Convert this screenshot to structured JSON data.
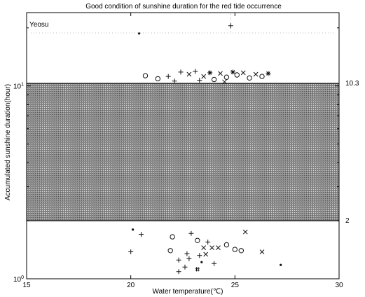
{
  "chart_data": {
    "type": "scatter",
    "title": "Good condition of sunshine duration for the red tide occurrence",
    "xlabel": "Water temperature(℃)",
    "ylabel": "Accumulated sunshine duration(hour)",
    "xlim": [
      15,
      30
    ],
    "ylim": [
      1,
      24
    ],
    "yscale": "log",
    "grid": false,
    "station_label": "Yeosu",
    "x_ticks": [
      {
        "value": 15,
        "label": "15"
      },
      {
        "value": 20,
        "label": "20"
      },
      {
        "value": 25,
        "label": "25"
      },
      {
        "value": 30,
        "label": "30"
      }
    ],
    "y_ticks": [
      {
        "value": 1,
        "base": "10",
        "exp": "0"
      },
      {
        "value": 10,
        "base": "10",
        "exp": "1"
      }
    ],
    "band": {
      "y_low": 2,
      "y_high": 10.3,
      "label_low": "2",
      "label_high": "10.3"
    },
    "points": [
      {
        "x": 20.4,
        "y": 18.7,
        "m": "dot"
      },
      {
        "x": 24.8,
        "y": 20.5,
        "m": "plus"
      },
      {
        "x": 20.7,
        "y": 11.3,
        "m": "circle"
      },
      {
        "x": 21.3,
        "y": 10.9,
        "m": "circle"
      },
      {
        "x": 21.8,
        "y": 11.2,
        "m": "plus"
      },
      {
        "x": 22.4,
        "y": 11.8,
        "m": "plus"
      },
      {
        "x": 22.8,
        "y": 11.5,
        "m": "x"
      },
      {
        "x": 23.1,
        "y": 11.9,
        "m": "plus"
      },
      {
        "x": 23.5,
        "y": 11.2,
        "m": "x"
      },
      {
        "x": 23.8,
        "y": 11.7,
        "m": "star"
      },
      {
        "x": 24.0,
        "y": 10.8,
        "m": "circle"
      },
      {
        "x": 24.3,
        "y": 11.6,
        "m": "x"
      },
      {
        "x": 24.6,
        "y": 11.1,
        "m": "circle"
      },
      {
        "x": 24.9,
        "y": 11.8,
        "m": "star"
      },
      {
        "x": 25.1,
        "y": 11.4,
        "m": "circle"
      },
      {
        "x": 25.4,
        "y": 11.7,
        "m": "x"
      },
      {
        "x": 25.7,
        "y": 11.0,
        "m": "circle"
      },
      {
        "x": 26.0,
        "y": 11.5,
        "m": "x"
      },
      {
        "x": 26.3,
        "y": 11.2,
        "m": "circle"
      },
      {
        "x": 26.6,
        "y": 11.6,
        "m": "star"
      },
      {
        "x": 22.1,
        "y": 10.6,
        "m": "plus"
      },
      {
        "x": 23.3,
        "y": 10.7,
        "m": "plus"
      },
      {
        "x": 24.5,
        "y": 10.5,
        "m": "x"
      },
      {
        "x": 20.1,
        "y": 1.8,
        "m": "dot"
      },
      {
        "x": 20.5,
        "y": 1.7,
        "m": "plus"
      },
      {
        "x": 22.0,
        "y": 1.65,
        "m": "circle"
      },
      {
        "x": 22.9,
        "y": 1.72,
        "m": "plus"
      },
      {
        "x": 23.2,
        "y": 1.58,
        "m": "circle"
      },
      {
        "x": 23.7,
        "y": 1.55,
        "m": "plus"
      },
      {
        "x": 23.5,
        "y": 1.45,
        "m": "x"
      },
      {
        "x": 23.9,
        "y": 1.45,
        "m": "x"
      },
      {
        "x": 24.2,
        "y": 1.45,
        "m": "x"
      },
      {
        "x": 24.6,
        "y": 1.5,
        "m": "circle"
      },
      {
        "x": 25.0,
        "y": 1.42,
        "m": "circle"
      },
      {
        "x": 25.3,
        "y": 1.4,
        "m": "circle"
      },
      {
        "x": 25.5,
        "y": 1.75,
        "m": "x"
      },
      {
        "x": 26.3,
        "y": 1.38,
        "m": "x"
      },
      {
        "x": 20.0,
        "y": 1.38,
        "m": "plus"
      },
      {
        "x": 21.9,
        "y": 1.4,
        "m": "circle"
      },
      {
        "x": 22.7,
        "y": 1.35,
        "m": "plus"
      },
      {
        "x": 23.3,
        "y": 1.32,
        "m": "plus"
      },
      {
        "x": 23.6,
        "y": 1.34,
        "m": "x"
      },
      {
        "x": 22.3,
        "y": 1.25,
        "m": "plus"
      },
      {
        "x": 22.8,
        "y": 1.27,
        "m": "plus"
      },
      {
        "x": 23.4,
        "y": 1.22,
        "m": "dot"
      },
      {
        "x": 24.0,
        "y": 1.2,
        "m": "plus"
      },
      {
        "x": 22.6,
        "y": 1.15,
        "m": "plus"
      },
      {
        "x": 23.2,
        "y": 1.12,
        "m": "hash"
      },
      {
        "x": 22.3,
        "y": 1.09,
        "m": "plus"
      },
      {
        "x": 27.2,
        "y": 1.18,
        "m": "dot"
      }
    ]
  }
}
